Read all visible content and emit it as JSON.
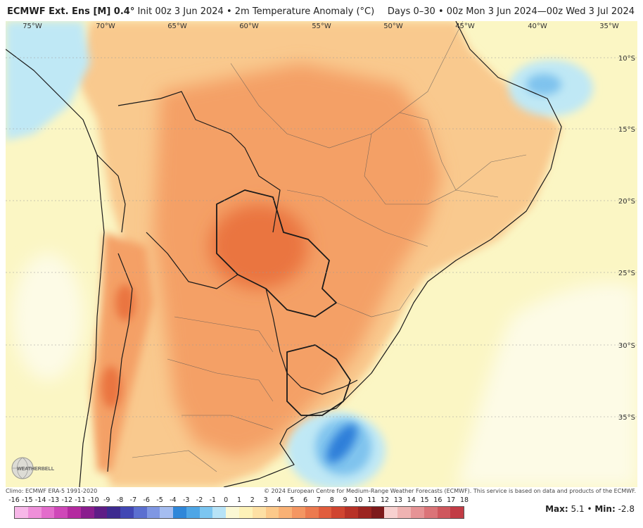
{
  "header": {
    "model": "ECMWF Ext. Ens [M] 0.4°",
    "init": "Init 00z 3 Jun 2024",
    "field": "2m Temperature Anomaly (°C)",
    "period": "Days 0–30 • 00z Mon 3 Jun 2024—00z Wed 3 Jul 2024"
  },
  "map": {
    "longitudes": [
      "75°W",
      "70°W",
      "65°W",
      "60°W",
      "55°W",
      "50°W",
      "45°W",
      "40°W",
      "35°W"
    ],
    "latitudes": [
      "10°S",
      "15°S",
      "20°S",
      "25°S",
      "30°S",
      "35°S"
    ],
    "colors": {
      "ocean_neutral": "#fbf6c4",
      "land_warm": "#f9c98e",
      "warm_strong": "#f4a066",
      "hot_core": "#ea7440",
      "cool_light": "#bfe8f5",
      "cool_medium": "#7fc3ee",
      "cool_strong": "#2d7fd9",
      "border": "#1a1a1a"
    }
  },
  "footer": {
    "climo": "Climo: ECMWF ERA-5 1991-2020",
    "copyright": "© 2024 European Centre for Medium-Range Weather Forecasts (ECMWF). This service is based on data and products of the ECMWF."
  },
  "logo": {
    "text": "WEATHERBELL"
  },
  "colorbar": {
    "labels": [
      "-16",
      "-15",
      "-14",
      "-13",
      "-12",
      "-11",
      "-10",
      "-9",
      "-8",
      "-7",
      "-6",
      "-5",
      "-4",
      "-3",
      "-2",
      "-1",
      "0",
      "1",
      "2",
      "3",
      "4",
      "5",
      "6",
      "7",
      "8",
      "9",
      "10",
      "11",
      "12",
      "13",
      "14",
      "15",
      "16",
      "17",
      "18"
    ],
    "colors": [
      "#f7b7e8",
      "#ee8fd9",
      "#e36ccb",
      "#cf47b8",
      "#b42aa0",
      "#8a1d8e",
      "#5e1c86",
      "#3d2a8f",
      "#4147b4",
      "#5b6fd0",
      "#7f97e3",
      "#a5bdf0",
      "#2f87d9",
      "#4ea6e6",
      "#7cc6f1",
      "#b7e3f7",
      "#fbf8d4",
      "#fdf2b8",
      "#fde0a4",
      "#fcc98a",
      "#f9b175",
      "#f49662",
      "#ec7a4f",
      "#e15d3d",
      "#d04530",
      "#b83227",
      "#9c2420",
      "#7e1a1b",
      "#f7d0cf",
      "#efb3b2",
      "#e69395",
      "#db7478",
      "#cf575d",
      "#c23c45"
    ]
  },
  "stats": {
    "max_label": "Max:",
    "max_value": "5.1",
    "sep": "•",
    "min_label": "Min:",
    "min_value": "-2.8"
  }
}
